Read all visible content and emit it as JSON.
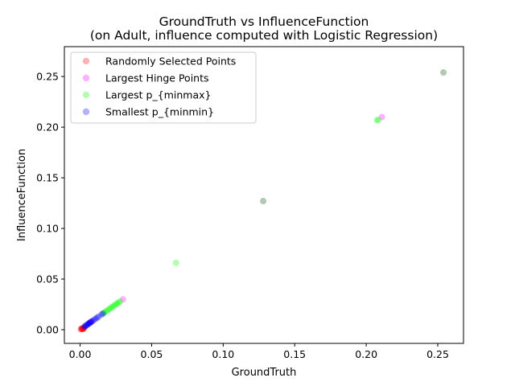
{
  "chart_data": {
    "type": "scatter",
    "title_line1": "GroundTruth vs InfluenceFunction",
    "title_line2": "(on Adult, influence computed with Logistic Regression)",
    "xlabel": "GroundTruth",
    "ylabel": "InfluenceFunction",
    "xlim": [
      -0.011,
      0.268
    ],
    "ylim": [
      -0.0135,
      0.2795
    ],
    "xticks": [
      0.0,
      0.05,
      0.1,
      0.15,
      0.2,
      0.25
    ],
    "xtick_labels": [
      "0.00",
      "0.05",
      "0.10",
      "0.15",
      "0.20",
      "0.25"
    ],
    "yticks": [
      0.0,
      0.05,
      0.1,
      0.15,
      0.2,
      0.25
    ],
    "ytick_labels": [
      "0.00",
      "0.05",
      "0.10",
      "0.15",
      "0.20",
      "0.25"
    ],
    "legend_position": "top-left",
    "grid": false,
    "series": [
      {
        "name": "Randomly Selected Points",
        "color": "#ff0000",
        "points": [
          [
            0.001,
            0.0006
          ],
          [
            0.0015,
            0.001
          ],
          [
            0.002,
            0.0012
          ],
          [
            0.0025,
            0.0015
          ],
          [
            0.0005,
            0.0004
          ],
          [
            0.003,
            0.0018
          ],
          [
            0.0018,
            0.0009
          ],
          [
            0.001,
            0.0014
          ],
          [
            0.0022,
            0.0007
          ]
        ]
      },
      {
        "name": "Largest Hinge Points",
        "color": "#ff00ff",
        "points": [
          [
            0.211,
            0.21
          ],
          [
            0.128,
            0.127
          ],
          [
            0.03,
            0.03
          ],
          [
            0.254,
            0.254
          ],
          [
            0.0065,
            0.0065
          ],
          [
            0.0075,
            0.0075
          ],
          [
            0.008,
            0.008
          ]
        ]
      },
      {
        "name": "Largest p_{minmax}",
        "color": "#00ff00",
        "points": [
          [
            0.254,
            0.254
          ],
          [
            0.2085,
            0.207
          ],
          [
            0.2075,
            0.207
          ],
          [
            0.128,
            0.127
          ],
          [
            0.067,
            0.066
          ],
          [
            0.028,
            0.028
          ],
          [
            0.027,
            0.027
          ],
          [
            0.026,
            0.026
          ],
          [
            0.025,
            0.025
          ],
          [
            0.024,
            0.024
          ],
          [
            0.023,
            0.023
          ],
          [
            0.022,
            0.022
          ],
          [
            0.021,
            0.021
          ],
          [
            0.02,
            0.02
          ],
          [
            0.019,
            0.019
          ],
          [
            0.018,
            0.018
          ],
          [
            0.017,
            0.017
          ],
          [
            0.016,
            0.016
          ]
        ]
      },
      {
        "name": "Smallest p_{minmin}",
        "color": "#0000ff",
        "points": [
          [
            0.003,
            0.003
          ],
          [
            0.0035,
            0.0035
          ],
          [
            0.004,
            0.004
          ],
          [
            0.0045,
            0.0045
          ],
          [
            0.005,
            0.005
          ],
          [
            0.0055,
            0.0055
          ],
          [
            0.006,
            0.006
          ],
          [
            0.0065,
            0.0065
          ],
          [
            0.007,
            0.007
          ],
          [
            0.0075,
            0.0075
          ],
          [
            0.008,
            0.008
          ],
          [
            0.009,
            0.009
          ],
          [
            0.01,
            0.01
          ],
          [
            0.011,
            0.011
          ],
          [
            0.012,
            0.012
          ],
          [
            0.013,
            0.013
          ],
          [
            0.015,
            0.015
          ],
          [
            0.016,
            0.016
          ]
        ]
      }
    ]
  }
}
